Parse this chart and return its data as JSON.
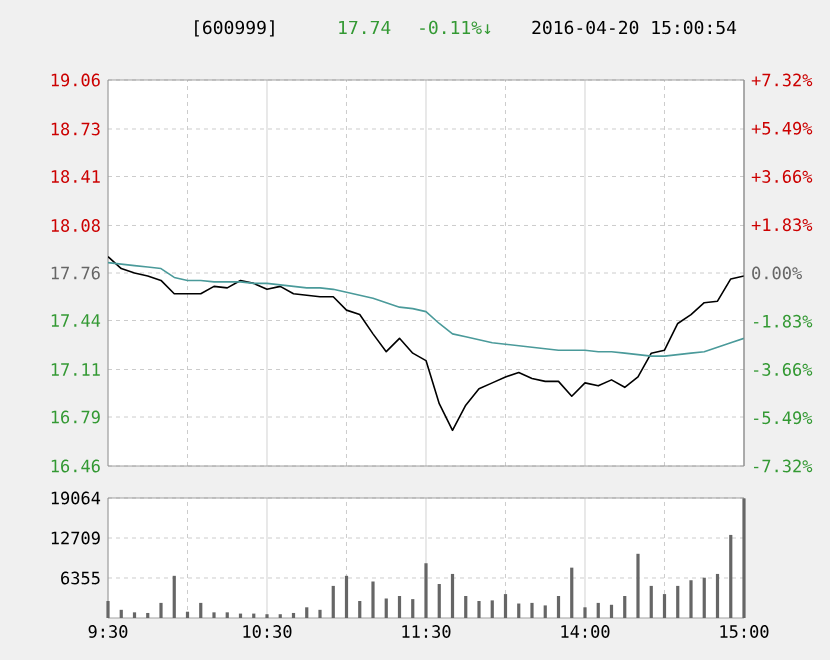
{
  "chart_data": [
    {
      "type": "line",
      "title": "[600999]",
      "annotations": [
        "17.74",
        "-0.11%↓",
        "2016-04-20 15:00:54"
      ],
      "categories": [
        null,
        null,
        null,
        null,
        null,
        null,
        null,
        null,
        null,
        null,
        null,
        null,
        null,
        null,
        null,
        null,
        null,
        null,
        null,
        null,
        null,
        null,
        null,
        null,
        null,
        null,
        null,
        null,
        null,
        null,
        null,
        null,
        null,
        null,
        null,
        null,
        null,
        null,
        null,
        null,
        null,
        null,
        null,
        null,
        null,
        null,
        null,
        null,
        null
      ],
      "ylim": [
        16.46,
        19.06
      ],
      "yticks": [
        16.46,
        16.79,
        17.11,
        17.44,
        17.76,
        18.08,
        18.41,
        18.73,
        19.06
      ],
      "y2lim": [
        -7.32,
        7.32
      ],
      "y2ticks": [
        {
          "value": -7.32,
          "label": "-7.32%"
        },
        {
          "value": -5.49,
          "label": "-5.49%"
        },
        {
          "value": -3.66,
          "label": "-3.66%"
        },
        {
          "value": -1.83,
          "label": "-1.83%"
        },
        {
          "value": 0,
          "label": "0.00%"
        },
        {
          "value": 1.83,
          "label": "+1.83%"
        },
        {
          "value": 3.66,
          "label": "+3.66%"
        },
        {
          "value": 5.49,
          "label": "+5.49%"
        },
        {
          "value": 7.32,
          "label": "+7.32%"
        }
      ],
      "grid": true,
      "tick_labels": "y",
      "series": [
        {
          "color": "#000000",
          "values": [
            17.87,
            17.79,
            17.76,
            17.74,
            17.71,
            17.62,
            17.62,
            17.62,
            17.67,
            17.66,
            17.71,
            17.69,
            17.65,
            17.67,
            17.62,
            17.61,
            17.6,
            17.6,
            17.51,
            17.48,
            17.35,
            17.23,
            17.32,
            17.22,
            17.17,
            16.88,
            16.7,
            16.87,
            16.98,
            17.02,
            17.06,
            17.09,
            17.05,
            17.03,
            17.03,
            16.93,
            17.02,
            17.0,
            17.04,
            16.99,
            17.06,
            17.22,
            17.24,
            17.42,
            17.48,
            17.56,
            17.57,
            17.72,
            17.74
          ]
        },
        {
          "color": "#4a9a9a",
          "values": [
            17.83,
            17.82,
            17.81,
            17.8,
            17.79,
            17.73,
            17.71,
            17.71,
            17.7,
            17.7,
            17.7,
            17.69,
            17.69,
            17.68,
            17.67,
            17.66,
            17.66,
            17.65,
            17.63,
            17.61,
            17.59,
            17.56,
            17.53,
            17.52,
            17.5,
            17.42,
            17.35,
            17.33,
            17.31,
            17.29,
            17.28,
            17.27,
            17.26,
            17.25,
            17.24,
            17.24,
            17.24,
            17.23,
            17.23,
            17.22,
            17.21,
            17.2,
            17.2,
            17.21,
            17.22,
            17.23,
            17.26,
            17.29,
            17.32
          ]
        }
      ]
    },
    {
      "type": "bar",
      "color": "#666666",
      "categories": [
        "9:30",
        null,
        null,
        null,
        null,
        null,
        null,
        null,
        null,
        null,
        null,
        null,
        "10:30",
        null,
        null,
        null,
        null,
        null,
        null,
        null,
        null,
        null,
        null,
        null,
        "11:30",
        null,
        null,
        null,
        null,
        null,
        null,
        null,
        null,
        null,
        null,
        null,
        "14:00",
        null,
        null,
        null,
        null,
        null,
        null,
        null,
        null,
        null,
        null,
        null,
        "15:00"
      ],
      "values": [
        2700,
        1300,
        900,
        800,
        2400,
        6700,
        1000,
        2400,
        900,
        900,
        700,
        700,
        600,
        600,
        800,
        1700,
        1300,
        5100,
        6700,
        2700,
        5800,
        3100,
        3500,
        3000,
        8700,
        5400,
        7000,
        3500,
        2700,
        2800,
        3800,
        2300,
        2400,
        2000,
        3500,
        8000,
        1700,
        2400,
        2100,
        3500,
        10200,
        5100,
        3800,
        5100,
        6000,
        6400,
        7000,
        13200,
        19000
      ],
      "ylim": [
        0,
        19064
      ],
      "yticks": [
        6355,
        12709,
        19064
      ],
      "grid": true
    }
  ]
}
